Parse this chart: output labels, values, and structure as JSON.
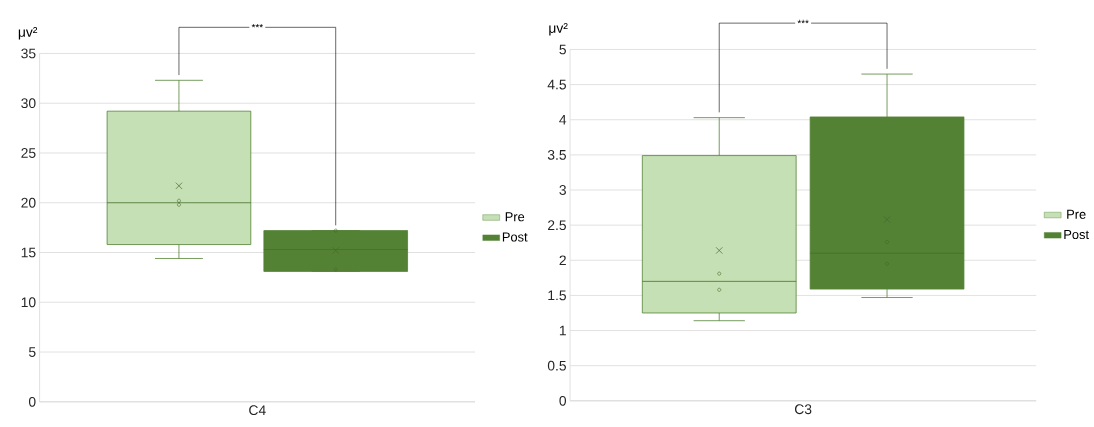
{
  "chart_data": [
    {
      "type": "box",
      "categories": [
        "C4"
      ],
      "ylabel": "μv²",
      "ylim": [
        0,
        35
      ],
      "yticks": [
        0,
        5,
        10,
        15,
        20,
        25,
        30,
        35
      ],
      "grid": "y",
      "legend": "right",
      "annotations": [
        "***"
      ],
      "series": [
        {
          "name": "Pre",
          "color": "#c5e0b4",
          "boxes": [
            {
              "low": 14.4,
              "q1": 15.8,
              "median": 20.0,
              "q3": 29.2,
              "high": 32.3,
              "mean": 21.7,
              "outliers": [
                20.2,
                19.8
              ]
            }
          ]
        },
        {
          "name": "Post",
          "color": "#548235",
          "boxes": [
            {
              "low": 13.1,
              "q1": 13.1,
              "median": 15.3,
              "q3": 17.2,
              "high": 17.2,
              "mean": 15.2,
              "outliers": [
                17.2,
                13.3
              ]
            }
          ]
        }
      ]
    },
    {
      "type": "box",
      "categories": [
        "C3"
      ],
      "ylabel": "μv²",
      "ylim": [
        0,
        5
      ],
      "yticks": [
        0,
        0.5,
        1,
        1.5,
        2,
        2.5,
        3,
        3.5,
        4,
        4.5,
        5
      ],
      "grid": "y",
      "legend": "right",
      "annotations": [
        "***"
      ],
      "series": [
        {
          "name": "Pre",
          "color": "#c5e0b4",
          "boxes": [
            {
              "low": 1.14,
              "q1": 1.25,
              "median": 1.7,
              "q3": 3.49,
              "high": 4.03,
              "mean": 2.14,
              "outliers": [
                1.81,
                1.58
              ]
            }
          ]
        },
        {
          "name": "Post",
          "color": "#548235",
          "boxes": [
            {
              "low": 1.47,
              "q1": 1.59,
              "median": 2.1,
              "q3": 4.04,
              "high": 4.65,
              "mean": 2.58,
              "outliers": [
                2.26,
                1.95
              ]
            }
          ]
        }
      ]
    }
  ]
}
